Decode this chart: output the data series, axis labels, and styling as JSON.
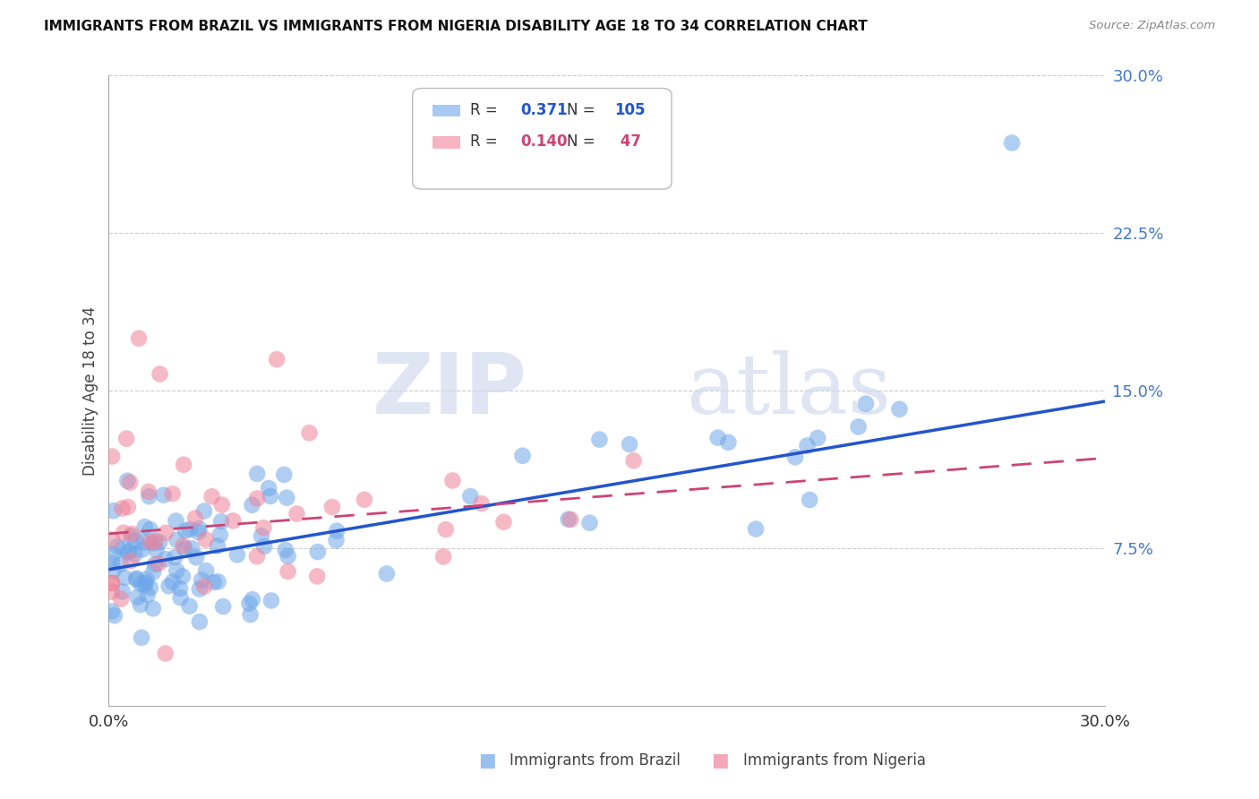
{
  "title": "IMMIGRANTS FROM BRAZIL VS IMMIGRANTS FROM NIGERIA DISABILITY AGE 18 TO 34 CORRELATION CHART",
  "source": "Source: ZipAtlas.com",
  "ylabel": "Disability Age 18 to 34",
  "ytick_labels": [
    "7.5%",
    "15.0%",
    "22.5%",
    "30.0%"
  ],
  "ytick_values": [
    0.075,
    0.15,
    0.225,
    0.3
  ],
  "xlim": [
    0.0,
    0.3
  ],
  "ylim": [
    0.0,
    0.3
  ],
  "brazil_color": "#6ea6e8",
  "nigeria_color": "#f0829a",
  "brazil_line_color": "#2255cc",
  "nigeria_line_color": "#cc4477",
  "brazil_R": "0.371",
  "brazil_N": "105",
  "nigeria_R": "0.140",
  "nigeria_N": "47",
  "legend_label_brazil": "Immigrants from Brazil",
  "legend_label_nigeria": "Immigrants from Nigeria",
  "watermark_zip": "ZIP",
  "watermark_atlas": "atlas",
  "brazil_line_x": [
    0.0,
    0.3
  ],
  "brazil_line_y": [
    0.065,
    0.145
  ],
  "nigeria_line_x": [
    0.0,
    0.3
  ],
  "nigeria_line_y": [
    0.082,
    0.118
  ]
}
